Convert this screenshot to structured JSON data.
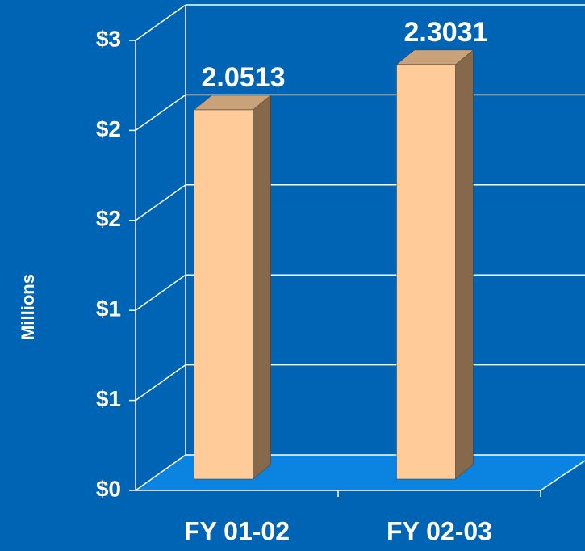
{
  "chart_data": {
    "type": "bar3d",
    "y_label": "Millions",
    "categories": [
      "FY 01-02",
      "FY 02-03"
    ],
    "values": [
      2.0513,
      2.3031
    ],
    "color": "#ffcc99",
    "ylim": [
      0,
      2.5
    ],
    "yticks": [
      {
        "value": 0,
        "label": "$0"
      },
      {
        "value": 0.5,
        "label": "$1"
      },
      {
        "value": 1,
        "label": "$1"
      },
      {
        "value": 1.5,
        "label": "$2"
      },
      {
        "value": 2,
        "label": "$2"
      },
      {
        "value": 2.5,
        "label": "$3"
      }
    ],
    "grid": true
  }
}
